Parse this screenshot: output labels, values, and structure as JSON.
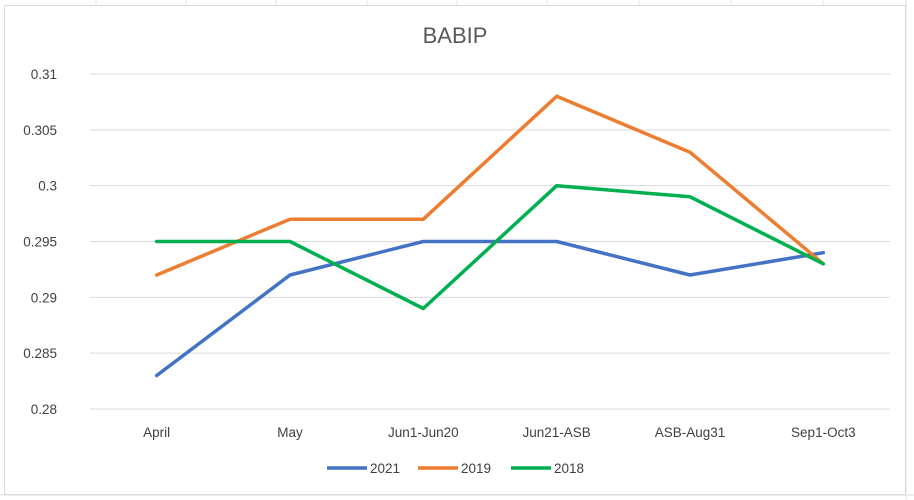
{
  "chart_data": {
    "type": "line",
    "title": "BABIP",
    "categories": [
      "April",
      "May",
      "Jun1-Jun20",
      "Jun21-ASB",
      "ASB-Aug31",
      "Sep1-Oct3"
    ],
    "ylim": [
      0.28,
      0.31
    ],
    "yticks": [
      "0.28",
      "0.285",
      "0.29",
      "0.295",
      "0.3",
      "0.305",
      "0.31"
    ],
    "grid": true,
    "legend_position": "bottom",
    "series": [
      {
        "name": "2021",
        "color": "#4472C4",
        "values": [
          0.283,
          0.292,
          0.295,
          0.295,
          0.292,
          0.294
        ]
      },
      {
        "name": "2019",
        "color": "#ED7D31",
        "values": [
          0.292,
          0.297,
          0.297,
          0.308,
          0.303,
          0.293
        ]
      },
      {
        "name": "2018",
        "color": "#00B050",
        "values": [
          0.295,
          0.295,
          0.289,
          0.3,
          0.299,
          0.293
        ]
      }
    ]
  }
}
